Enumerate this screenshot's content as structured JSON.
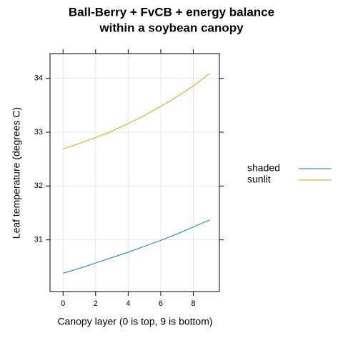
{
  "chart_data": {
    "type": "line",
    "title": "Ball-Berry + FvCB + energy balance",
    "subtitle": "within a soybean canopy",
    "x_label": "Canopy layer (0 is top, 9 is bottom)",
    "y_label": "Leaf temperature (degrees C)",
    "x": [
      0,
      1,
      2,
      3,
      4,
      5,
      6,
      7,
      8,
      9
    ],
    "series": [
      {
        "name": "shaded",
        "color": "#0080c0",
        "values": [
          30.38,
          30.47,
          30.57,
          30.67,
          30.77,
          30.88,
          30.99,
          31.11,
          31.24,
          31.37
        ]
      },
      {
        "name": "sunlit",
        "color": "#e69f00",
        "values": [
          32.69,
          32.79,
          32.9,
          33.02,
          33.16,
          33.31,
          33.48,
          33.66,
          33.86,
          34.09
        ]
      }
    ],
    "xlim": [
      -0.8,
      9.6
    ],
    "xticks": [
      0,
      2,
      4,
      6,
      8
    ],
    "ylim": [
      30.04,
      34.46
    ],
    "yticks": [
      31,
      32,
      33,
      34
    ],
    "grid": true,
    "legend": "right"
  }
}
